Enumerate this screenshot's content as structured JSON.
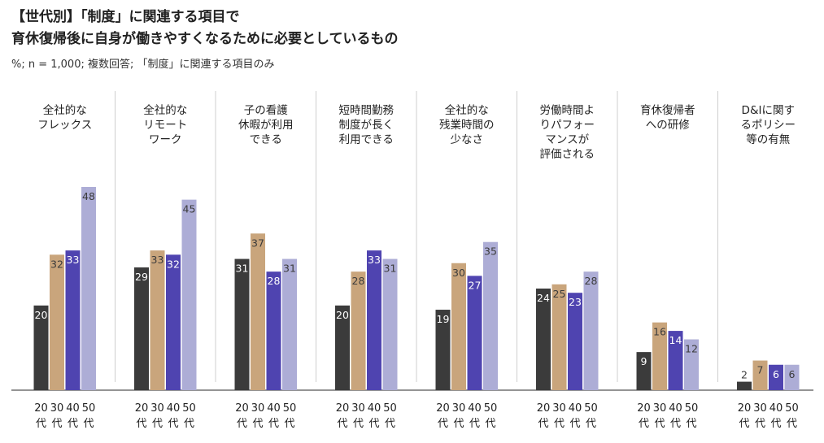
{
  "chart_data": {
    "type": "bar",
    "title": "【世代別】「制度」に関連する項目で",
    "title2": "育休復帰後に自身が働きやすくなるために必要としているもの",
    "subtitle": "%; n = 1,000; 複数回答; 「制度」に関連する項目のみ",
    "age_groups": [
      [
        "20",
        "代"
      ],
      [
        "30",
        "代"
      ],
      [
        "40",
        "代"
      ],
      [
        "50",
        "代"
      ]
    ],
    "colors": [
      "#3b3b3b",
      "#c9a57c",
      "#4f44b0",
      "#adadd6"
    ],
    "label_colors": [
      "#ffffff",
      "#3b3b3b",
      "#ffffff",
      "#3b3b3b"
    ],
    "ylim": [
      0,
      50
    ],
    "categories": [
      {
        "label": [
          "全社的な",
          "フレックス"
        ],
        "values": [
          20,
          32,
          33,
          48
        ]
      },
      {
        "label": [
          "全社的な",
          "リモート",
          "ワーク"
        ],
        "values": [
          29,
          33,
          32,
          45
        ]
      },
      {
        "label": [
          "子の看護",
          "休暇が利用",
          "できる"
        ],
        "values": [
          31,
          37,
          28,
          31
        ]
      },
      {
        "label": [
          "短時間勤務",
          "制度が長く",
          "利用できる"
        ],
        "values": [
          20,
          28,
          33,
          31
        ]
      },
      {
        "label": [
          "全社的な",
          "残業時間の",
          "少なさ"
        ],
        "values": [
          19,
          30,
          27,
          35
        ]
      },
      {
        "label": [
          "労働時間よ",
          "りパフォー",
          "マンスが",
          "評価される"
        ],
        "values": [
          24,
          25,
          23,
          28
        ]
      },
      {
        "label": [
          "育休復帰者",
          "への研修"
        ],
        "values": [
          9,
          16,
          14,
          12
        ]
      },
      {
        "label": [
          "D&Iに関す",
          "るポリシー",
          "等の有無"
        ],
        "values": [
          2,
          7,
          6,
          6
        ]
      }
    ]
  }
}
